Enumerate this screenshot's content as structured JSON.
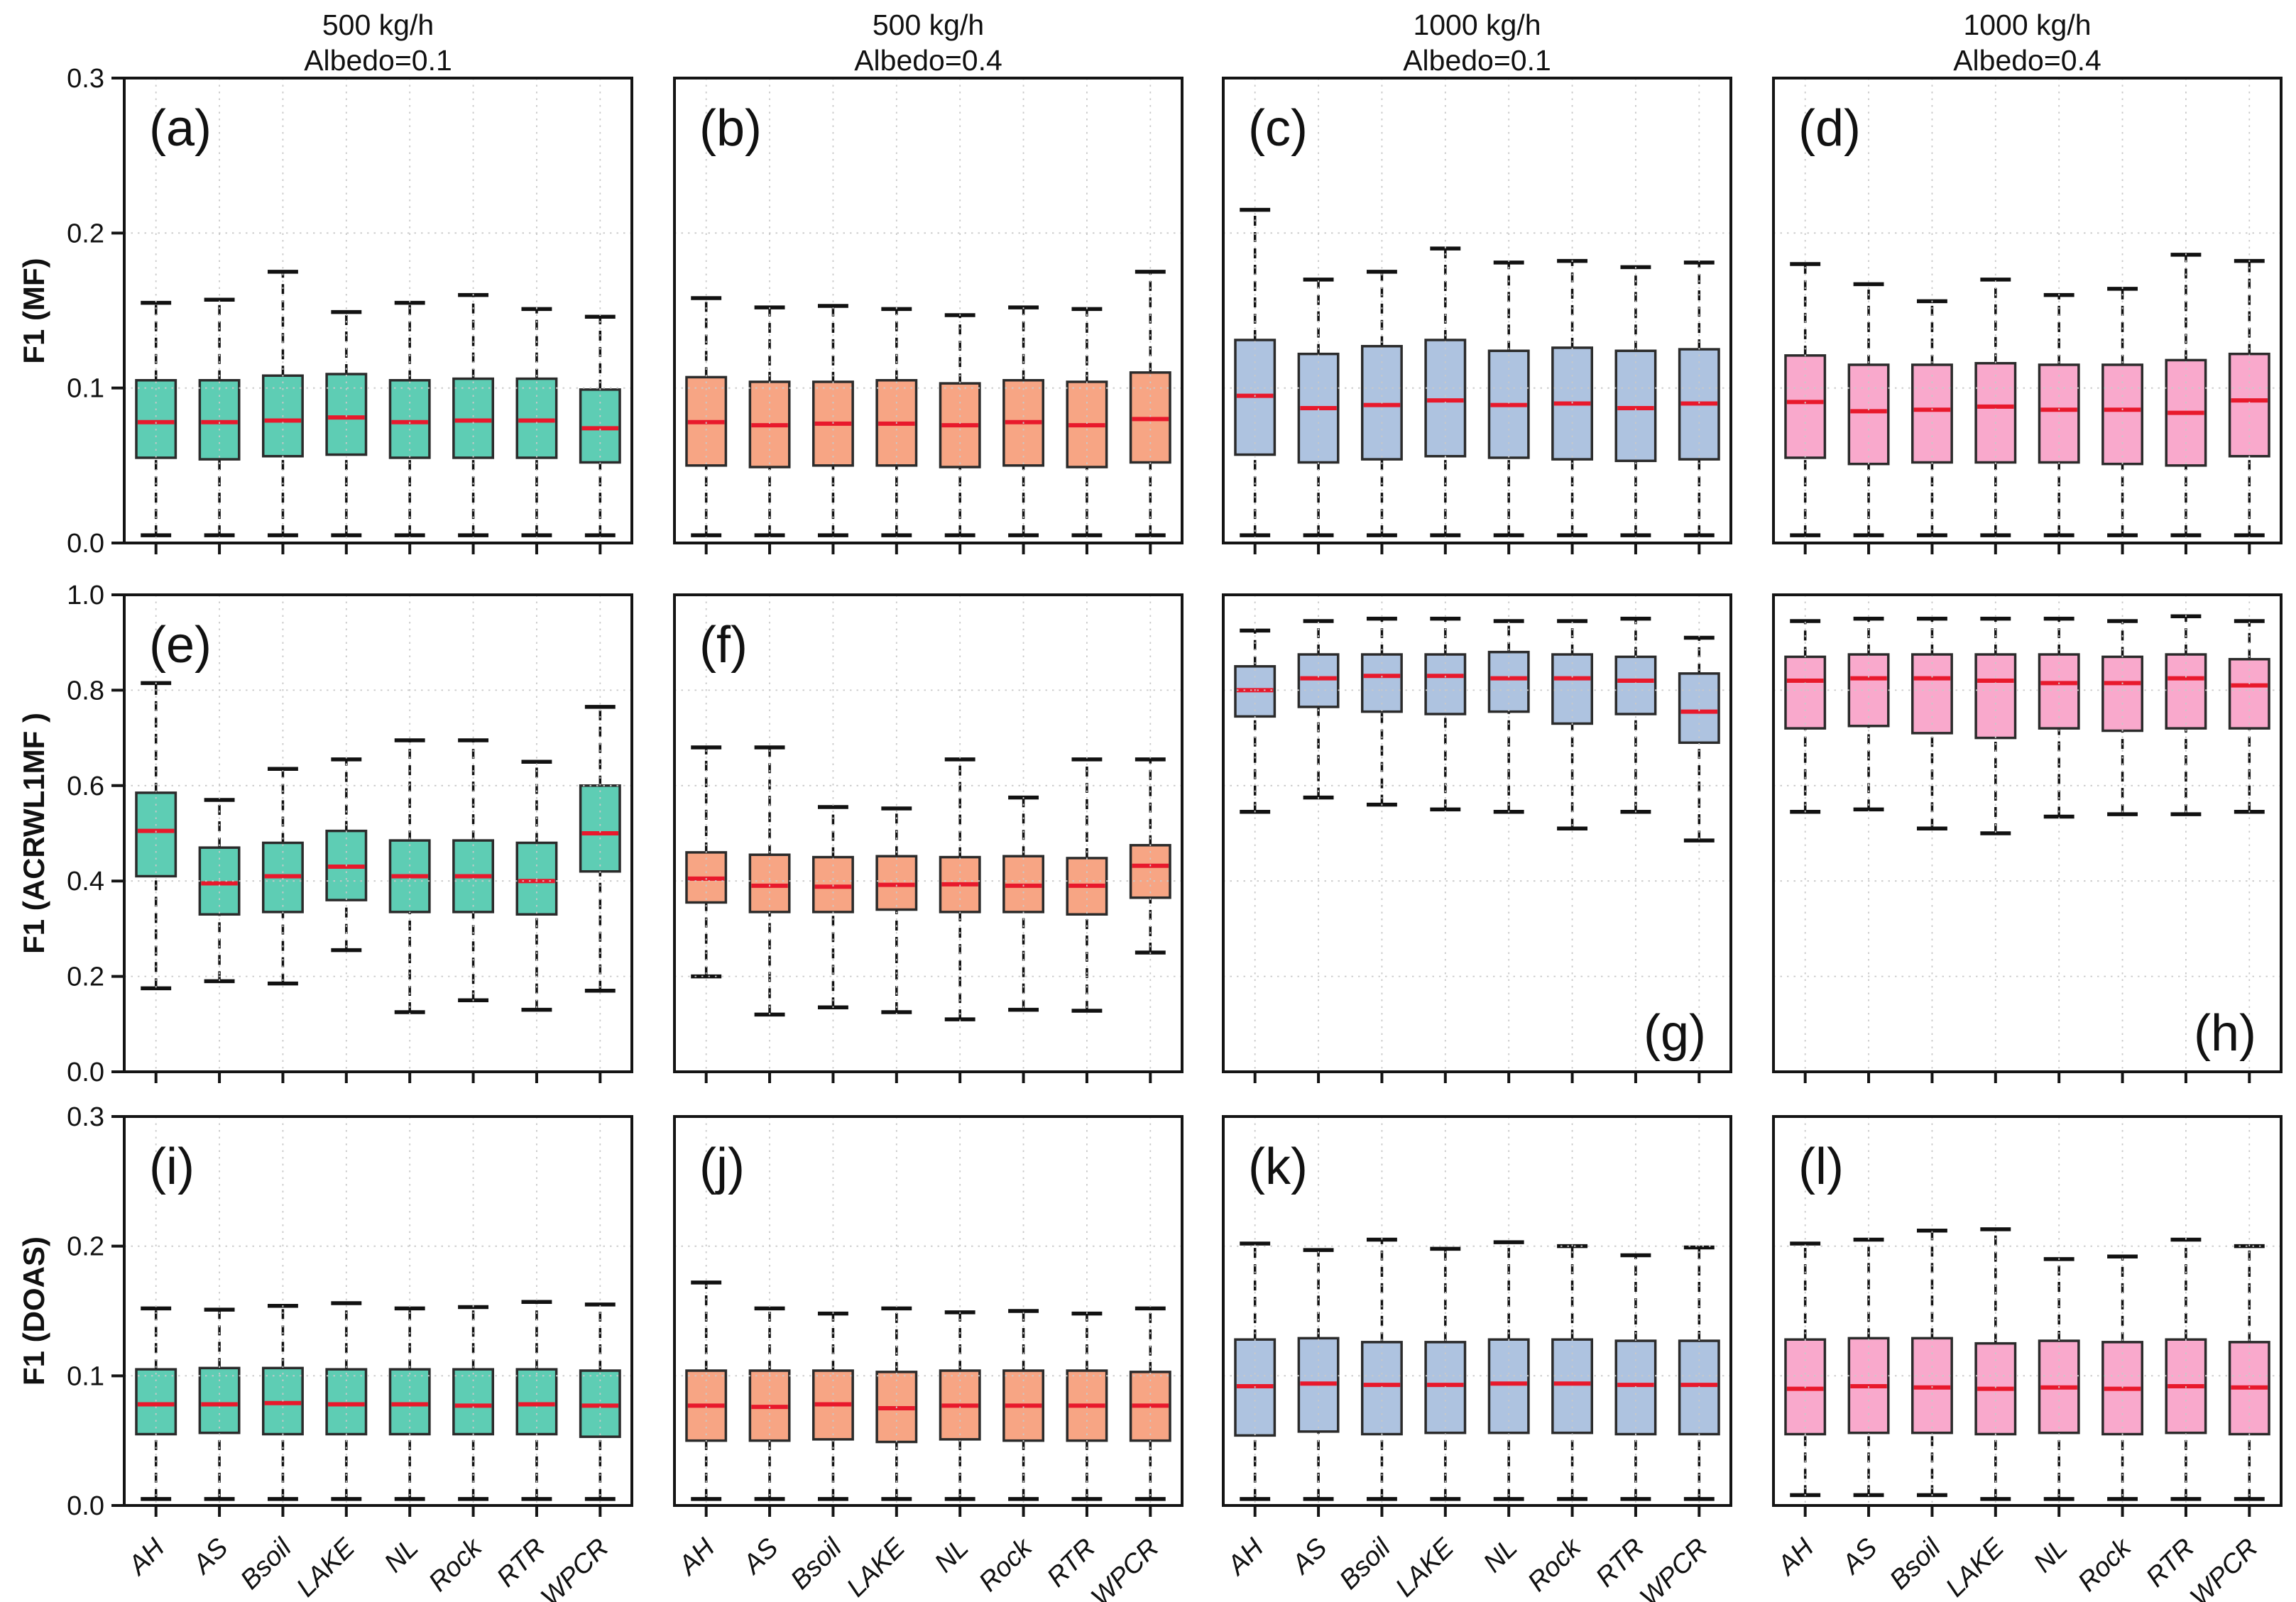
{
  "chart_data": {
    "type": "boxplot-grid",
    "categories": [
      "AH",
      "AS",
      "Bsoil",
      "LAKE",
      "NL",
      "Rock",
      "RTR",
      "WPCR"
    ],
    "column_headers": [
      [
        "500 kg/h",
        "Albedo=0.1"
      ],
      [
        "500 kg/h",
        "Albedo=0.4"
      ],
      [
        "1000 kg/h",
        "Albedo=0.1"
      ],
      [
        "1000 kg/h",
        "Albedo=0.4"
      ]
    ],
    "row_labels": [
      "F1 (MF)",
      "F1 (ACRWL1MF )",
      "F1 (DOAS)"
    ],
    "rows": [
      {
        "ylim": [
          0.0,
          0.3
        ],
        "yticks": [
          0.0,
          0.1,
          0.2,
          0.3
        ]
      },
      {
        "ylim": [
          0.0,
          1.0
        ],
        "yticks": [
          0.0,
          0.2,
          0.4,
          0.6,
          0.8,
          1.0
        ]
      },
      {
        "ylim": [
          0.0,
          0.3
        ],
        "yticks": [
          0.0,
          0.1,
          0.2,
          0.3
        ]
      }
    ],
    "legend": "boxes: lo-whisker, Q1, median, Q3, hi-whisker",
    "palette": {
      "teal": "#5ecdb4",
      "orange": "#f7a584",
      "blue": "#aec3e0",
      "pink": "#f9a9cc",
      "median": "#e8192c",
      "box_edge": "#2b2b2b",
      "whisker": "#111111",
      "grid": "#c9c9c9",
      "spine": "#141414"
    },
    "panels": [
      {
        "label": "(a)",
        "row": 0,
        "col": 0,
        "fill": "teal",
        "label_pos": "top-left",
        "boxes": [
          [
            0.005,
            0.055,
            0.078,
            0.105,
            0.155
          ],
          [
            0.005,
            0.054,
            0.078,
            0.105,
            0.157
          ],
          [
            0.005,
            0.056,
            0.079,
            0.108,
            0.175
          ],
          [
            0.005,
            0.057,
            0.081,
            0.109,
            0.149
          ],
          [
            0.005,
            0.055,
            0.078,
            0.105,
            0.155
          ],
          [
            0.005,
            0.055,
            0.079,
            0.106,
            0.16
          ],
          [
            0.005,
            0.055,
            0.079,
            0.106,
            0.151
          ],
          [
            0.005,
            0.052,
            0.074,
            0.099,
            0.146
          ]
        ]
      },
      {
        "label": "(b)",
        "row": 0,
        "col": 1,
        "fill": "orange",
        "label_pos": "top-left",
        "boxes": [
          [
            0.005,
            0.05,
            0.078,
            0.107,
            0.158
          ],
          [
            0.005,
            0.049,
            0.076,
            0.104,
            0.152
          ],
          [
            0.005,
            0.05,
            0.077,
            0.104,
            0.153
          ],
          [
            0.005,
            0.05,
            0.077,
            0.105,
            0.151
          ],
          [
            0.005,
            0.049,
            0.076,
            0.103,
            0.147
          ],
          [
            0.005,
            0.05,
            0.078,
            0.105,
            0.152
          ],
          [
            0.005,
            0.049,
            0.076,
            0.104,
            0.151
          ],
          [
            0.005,
            0.052,
            0.08,
            0.11,
            0.175
          ]
        ]
      },
      {
        "label": "(c)",
        "row": 0,
        "col": 2,
        "fill": "blue",
        "label_pos": "top-left",
        "boxes": [
          [
            0.005,
            0.057,
            0.095,
            0.131,
            0.215
          ],
          [
            0.005,
            0.052,
            0.087,
            0.122,
            0.17
          ],
          [
            0.005,
            0.054,
            0.089,
            0.127,
            0.175
          ],
          [
            0.005,
            0.056,
            0.092,
            0.131,
            0.19
          ],
          [
            0.005,
            0.055,
            0.089,
            0.124,
            0.181
          ],
          [
            0.005,
            0.054,
            0.09,
            0.126,
            0.182
          ],
          [
            0.005,
            0.053,
            0.087,
            0.124,
            0.178
          ],
          [
            0.005,
            0.054,
            0.09,
            0.125,
            0.181
          ]
        ]
      },
      {
        "label": "(d)",
        "row": 0,
        "col": 3,
        "fill": "pink",
        "label_pos": "top-left",
        "boxes": [
          [
            0.005,
            0.055,
            0.091,
            0.121,
            0.18
          ],
          [
            0.005,
            0.051,
            0.085,
            0.115,
            0.167
          ],
          [
            0.005,
            0.052,
            0.086,
            0.115,
            0.156
          ],
          [
            0.005,
            0.052,
            0.088,
            0.116,
            0.17
          ],
          [
            0.005,
            0.052,
            0.086,
            0.115,
            0.16
          ],
          [
            0.005,
            0.051,
            0.086,
            0.115,
            0.164
          ],
          [
            0.005,
            0.05,
            0.084,
            0.118,
            0.186
          ],
          [
            0.005,
            0.056,
            0.092,
            0.122,
            0.182
          ]
        ]
      },
      {
        "label": "(e)",
        "row": 1,
        "col": 0,
        "fill": "teal",
        "label_pos": "top-left",
        "boxes": [
          [
            0.175,
            0.41,
            0.505,
            0.585,
            0.815
          ],
          [
            0.19,
            0.33,
            0.395,
            0.47,
            0.57
          ],
          [
            0.185,
            0.335,
            0.41,
            0.48,
            0.635
          ],
          [
            0.255,
            0.36,
            0.43,
            0.505,
            0.655
          ],
          [
            0.125,
            0.335,
            0.41,
            0.485,
            0.695
          ],
          [
            0.15,
            0.335,
            0.41,
            0.485,
            0.695
          ],
          [
            0.13,
            0.33,
            0.4,
            0.48,
            0.65
          ],
          [
            0.17,
            0.42,
            0.5,
            0.6,
            0.765
          ]
        ]
      },
      {
        "label": "(f)",
        "row": 1,
        "col": 1,
        "fill": "orange",
        "label_pos": "top-left",
        "boxes": [
          [
            0.2,
            0.355,
            0.405,
            0.46,
            0.68
          ],
          [
            0.12,
            0.335,
            0.39,
            0.455,
            0.68
          ],
          [
            0.135,
            0.335,
            0.388,
            0.45,
            0.555
          ],
          [
            0.125,
            0.34,
            0.392,
            0.452,
            0.552
          ],
          [
            0.11,
            0.335,
            0.393,
            0.45,
            0.655
          ],
          [
            0.13,
            0.335,
            0.39,
            0.452,
            0.575
          ],
          [
            0.128,
            0.33,
            0.39,
            0.448,
            0.655
          ],
          [
            0.25,
            0.365,
            0.432,
            0.475,
            0.655
          ]
        ]
      },
      {
        "label": "(g)",
        "row": 1,
        "col": 2,
        "fill": "blue",
        "label_pos": "bottom-right",
        "boxes": [
          [
            0.545,
            0.745,
            0.8,
            0.85,
            0.925
          ],
          [
            0.575,
            0.765,
            0.825,
            0.875,
            0.945
          ],
          [
            0.56,
            0.755,
            0.83,
            0.875,
            0.95
          ],
          [
            0.55,
            0.75,
            0.83,
            0.875,
            0.95
          ],
          [
            0.545,
            0.755,
            0.825,
            0.88,
            0.945
          ],
          [
            0.51,
            0.73,
            0.825,
            0.875,
            0.945
          ],
          [
            0.545,
            0.75,
            0.82,
            0.87,
            0.95
          ],
          [
            0.485,
            0.69,
            0.755,
            0.835,
            0.91
          ]
        ]
      },
      {
        "label": "(h)",
        "row": 1,
        "col": 3,
        "fill": "pink",
        "label_pos": "bottom-right",
        "boxes": [
          [
            0.545,
            0.72,
            0.82,
            0.87,
            0.945
          ],
          [
            0.55,
            0.725,
            0.825,
            0.875,
            0.95
          ],
          [
            0.51,
            0.71,
            0.825,
            0.875,
            0.95
          ],
          [
            0.5,
            0.7,
            0.82,
            0.875,
            0.95
          ],
          [
            0.535,
            0.72,
            0.815,
            0.875,
            0.95
          ],
          [
            0.54,
            0.715,
            0.815,
            0.87,
            0.945
          ],
          [
            0.54,
            0.72,
            0.825,
            0.875,
            0.955
          ],
          [
            0.545,
            0.72,
            0.81,
            0.865,
            0.945
          ]
        ]
      },
      {
        "label": "(i)",
        "row": 2,
        "col": 0,
        "fill": "teal",
        "label_pos": "top-left",
        "boxes": [
          [
            0.005,
            0.055,
            0.078,
            0.105,
            0.152
          ],
          [
            0.005,
            0.056,
            0.078,
            0.106,
            0.151
          ],
          [
            0.005,
            0.055,
            0.079,
            0.106,
            0.154
          ],
          [
            0.005,
            0.055,
            0.078,
            0.105,
            0.156
          ],
          [
            0.005,
            0.055,
            0.078,
            0.105,
            0.152
          ],
          [
            0.005,
            0.055,
            0.077,
            0.105,
            0.153
          ],
          [
            0.005,
            0.055,
            0.078,
            0.105,
            0.157
          ],
          [
            0.005,
            0.053,
            0.077,
            0.104,
            0.155
          ]
        ]
      },
      {
        "label": "(j)",
        "row": 2,
        "col": 1,
        "fill": "orange",
        "label_pos": "top-left",
        "boxes": [
          [
            0.005,
            0.05,
            0.077,
            0.104,
            0.172
          ],
          [
            0.005,
            0.05,
            0.076,
            0.104,
            0.152
          ],
          [
            0.005,
            0.051,
            0.078,
            0.104,
            0.148
          ],
          [
            0.005,
            0.049,
            0.075,
            0.103,
            0.152
          ],
          [
            0.005,
            0.051,
            0.077,
            0.104,
            0.149
          ],
          [
            0.005,
            0.05,
            0.077,
            0.104,
            0.15
          ],
          [
            0.005,
            0.05,
            0.077,
            0.104,
            0.148
          ],
          [
            0.005,
            0.05,
            0.077,
            0.103,
            0.152
          ]
        ]
      },
      {
        "label": "(k)",
        "row": 2,
        "col": 2,
        "fill": "blue",
        "label_pos": "top-left",
        "boxes": [
          [
            0.005,
            0.054,
            0.092,
            0.128,
            0.202
          ],
          [
            0.005,
            0.057,
            0.094,
            0.129,
            0.197
          ],
          [
            0.005,
            0.055,
            0.093,
            0.126,
            0.205
          ],
          [
            0.005,
            0.056,
            0.093,
            0.126,
            0.198
          ],
          [
            0.005,
            0.056,
            0.094,
            0.128,
            0.203
          ],
          [
            0.005,
            0.056,
            0.094,
            0.128,
            0.2
          ],
          [
            0.005,
            0.055,
            0.093,
            0.127,
            0.193
          ],
          [
            0.005,
            0.055,
            0.093,
            0.127,
            0.199
          ]
        ]
      },
      {
        "label": "(l)",
        "row": 2,
        "col": 3,
        "fill": "pink",
        "label_pos": "top-left",
        "boxes": [
          [
            0.008,
            0.055,
            0.09,
            0.128,
            0.202
          ],
          [
            0.008,
            0.056,
            0.092,
            0.129,
            0.205
          ],
          [
            0.008,
            0.056,
            0.091,
            0.129,
            0.212
          ],
          [
            0.005,
            0.055,
            0.09,
            0.125,
            0.213
          ],
          [
            0.005,
            0.056,
            0.091,
            0.127,
            0.19
          ],
          [
            0.005,
            0.055,
            0.09,
            0.126,
            0.192
          ],
          [
            0.005,
            0.056,
            0.092,
            0.128,
            0.205
          ],
          [
            0.005,
            0.055,
            0.091,
            0.126,
            0.2
          ]
        ]
      }
    ]
  }
}
